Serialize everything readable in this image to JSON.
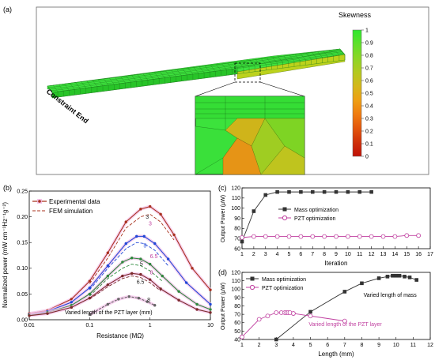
{
  "panel_a": {
    "label": "(a)",
    "constraint_label": "Constraint End",
    "colorbar": {
      "title": "Skewness",
      "ticks": [
        "1",
        "0.9",
        "0.8",
        "0.7",
        "0.6",
        "0.5",
        "0.4",
        "0.3",
        "0.2",
        "0.1",
        "0"
      ],
      "colors": [
        "#2ee82e",
        "#5fe02a",
        "#8cd626",
        "#b3c91f",
        "#d4b81a",
        "#ee9f14",
        "#f07c10",
        "#e3560c",
        "#cf300a",
        "#c01208"
      ]
    }
  },
  "chart_data": [
    {
      "type": "line",
      "panel": "(b)",
      "xlabel": "Resistance (MΩ)",
      "ylabel": "Normalized power (mW cm⁻³Hz⁻¹g⁻²)",
      "xscale": "log",
      "xlim": [
        0.01,
        10
      ],
      "ylim": [
        0,
        0.25
      ],
      "xticks": [
        "0.01",
        "0.1",
        "1",
        "10"
      ],
      "yticks": [
        "0.00",
        "0.05",
        "0.10",
        "0.15",
        "0.20",
        "0.25"
      ],
      "legend": [
        "Experimental data",
        "FEM simulation"
      ],
      "annotation": "Varied length of the PZT layer (mm)",
      "series": [
        {
          "label": "3",
          "color": "#a8321e",
          "x": [
            0.01,
            0.02,
            0.05,
            0.1,
            0.2,
            0.4,
            0.7,
            1.0,
            1.5,
            2.5,
            5,
            10
          ],
          "values": [
            0.012,
            0.018,
            0.04,
            0.075,
            0.13,
            0.19,
            0.215,
            0.22,
            0.205,
            0.165,
            0.1,
            0.058
          ]
        },
        {
          "label": "5",
          "color": "#2149d8",
          "x": [
            0.01,
            0.02,
            0.05,
            0.1,
            0.2,
            0.4,
            0.6,
            0.8,
            1.2,
            2,
            4,
            10
          ],
          "values": [
            0.01,
            0.016,
            0.034,
            0.062,
            0.105,
            0.148,
            0.162,
            0.162,
            0.148,
            0.118,
            0.072,
            0.03
          ]
        },
        {
          "label": "6.5",
          "color": "#2f8a3e",
          "x": [
            0.01,
            0.02,
            0.05,
            0.1,
            0.2,
            0.35,
            0.5,
            0.7,
            1.0,
            1.6,
            3,
            6,
            10
          ],
          "values": [
            0.009,
            0.014,
            0.028,
            0.05,
            0.085,
            0.112,
            0.12,
            0.118,
            0.108,
            0.085,
            0.055,
            0.03,
            0.02
          ]
        },
        {
          "label": "8",
          "color": "#7a2a2a",
          "x": [
            0.01,
            0.02,
            0.05,
            0.1,
            0.2,
            0.35,
            0.5,
            0.7,
            1.0,
            1.5,
            3,
            6,
            10
          ],
          "values": [
            0.008,
            0.012,
            0.024,
            0.042,
            0.068,
            0.085,
            0.09,
            0.088,
            0.078,
            0.06,
            0.038,
            0.02,
            0.014
          ]
        },
        {
          "label": "8",
          "color": "#666666",
          "x": [
            0.1,
            0.2,
            0.3,
            0.45,
            0.65,
            0.9,
            1.2
          ],
          "values": [
            0.01,
            0.03,
            0.04,
            0.045,
            0.042,
            0.035,
            0.028
          ]
        }
      ],
      "fem_series": [
        {
          "label": "3",
          "color": "#a8321e",
          "x": [
            0.1,
            0.2,
            0.4,
            0.7,
            1.0,
            1.5,
            2.5
          ],
          "values": [
            0.07,
            0.12,
            0.178,
            0.2,
            0.205,
            0.19,
            0.155
          ]
        },
        {
          "label": "5",
          "color": "#2149d8",
          "x": [
            0.1,
            0.2,
            0.4,
            0.6,
            0.8,
            1.2,
            2
          ],
          "values": [
            0.058,
            0.1,
            0.138,
            0.15,
            0.148,
            0.135,
            0.105
          ]
        },
        {
          "label": "6.5",
          "color": "#2f8a3e",
          "x": [
            0.1,
            0.2,
            0.35,
            0.5,
            0.7,
            1.0,
            1.6
          ],
          "values": [
            0.046,
            0.08,
            0.1,
            0.108,
            0.105,
            0.095,
            0.075
          ]
        },
        {
          "label": "8",
          "color": "#7a2a2a",
          "x": [
            0.1,
            0.2,
            0.35,
            0.5,
            0.7,
            1.0,
            1.5
          ],
          "values": [
            0.04,
            0.064,
            0.08,
            0.085,
            0.082,
            0.072,
            0.056
          ]
        }
      ],
      "curve_labels": [
        {
          "text": "3",
          "color": "#222222",
          "x": 0.85,
          "y": 0.196
        },
        {
          "text": "3",
          "color": "#c040a0",
          "x": 0.95,
          "y": 0.183
        },
        {
          "text": "5",
          "color": "#2149d8",
          "x": 0.78,
          "y": 0.14
        },
        {
          "text": "6.5",
          "color": "#c040a0",
          "x": 1.0,
          "y": 0.12
        },
        {
          "text": "5",
          "color": "#222222",
          "x": 0.68,
          "y": 0.105
        },
        {
          "text": "6.5",
          "color": "#222222",
          "x": 0.6,
          "y": 0.07
        },
        {
          "text": "8",
          "color": "#c040a0",
          "x": 1.0,
          "y": 0.088
        },
        {
          "text": "8",
          "color": "#222222",
          "x": 0.9,
          "y": 0.035
        }
      ]
    },
    {
      "type": "line",
      "panel": "(c)",
      "xlabel": "Iteration",
      "ylabel": "Output Power (μW)",
      "xlim": [
        1,
        17
      ],
      "ylim": [
        60,
        120
      ],
      "xticks": [
        "1",
        "2",
        "3",
        "4",
        "5",
        "6",
        "7",
        "8",
        "9",
        "10",
        "11",
        "12",
        "13",
        "14",
        "15",
        "16",
        "17"
      ],
      "yticks": [
        "60",
        "70",
        "80",
        "90",
        "100",
        "110",
        "120"
      ],
      "series": [
        {
          "name": "Mass optimization",
          "color": "#333333",
          "marker": "square",
          "x": [
            1,
            2,
            3,
            4,
            5,
            6,
            7,
            8,
            9,
            10,
            11,
            12
          ],
          "values": [
            67,
            97,
            113,
            116,
            116,
            116,
            116,
            116,
            116,
            116,
            116,
            116
          ]
        },
        {
          "name": "PZT optimization",
          "color": "#c040a0",
          "marker": "circle",
          "x": [
            1,
            2,
            3,
            4,
            5,
            6,
            7,
            8,
            9,
            10,
            11,
            12,
            13,
            14,
            15,
            16
          ],
          "values": [
            71,
            72,
            72,
            72,
            72,
            72,
            72,
            72,
            72,
            72,
            72,
            72,
            72,
            72,
            73,
            73
          ]
        }
      ]
    },
    {
      "type": "line",
      "panel": "(d)",
      "xlabel": "Length (mm)",
      "ylabel": "Output Power (μW)",
      "xlim": [
        1,
        12
      ],
      "ylim": [
        40,
        120
      ],
      "xticks": [
        "1",
        "2",
        "3",
        "4",
        "5",
        "6",
        "7",
        "8",
        "9",
        "10",
        "11",
        "12"
      ],
      "yticks": [
        "40",
        "50",
        "60",
        "70",
        "80",
        "90",
        "100",
        "110",
        "120"
      ],
      "annotations": [
        {
          "text": "Varied length of mass",
          "color": "#000000",
          "x": 8.1,
          "y": 91
        },
        {
          "text": "Varied length of the PZT layer",
          "color": "#c040a0",
          "x": 4.9,
          "y": 56
        }
      ],
      "series": [
        {
          "name": "Mass optimization",
          "color": "#333333",
          "marker": "square",
          "x": [
            3,
            5,
            7,
            8,
            9,
            9.5,
            9.8,
            10,
            10.2,
            10.5,
            10.8,
            11.2
          ],
          "values": [
            40,
            73,
            97,
            107,
            113,
            115,
            116,
            116,
            116,
            115,
            114,
            111
          ]
        },
        {
          "name": "PZT optimization",
          "color": "#c040a0",
          "marker": "circle",
          "x": [
            1,
            2,
            2.5,
            3,
            3.3,
            3.5,
            3.6,
            3.7,
            3.8,
            4,
            5,
            7
          ],
          "values": [
            43,
            64,
            68,
            72,
            72,
            72,
            72,
            72,
            72,
            71,
            68,
            62
          ]
        }
      ]
    }
  ]
}
